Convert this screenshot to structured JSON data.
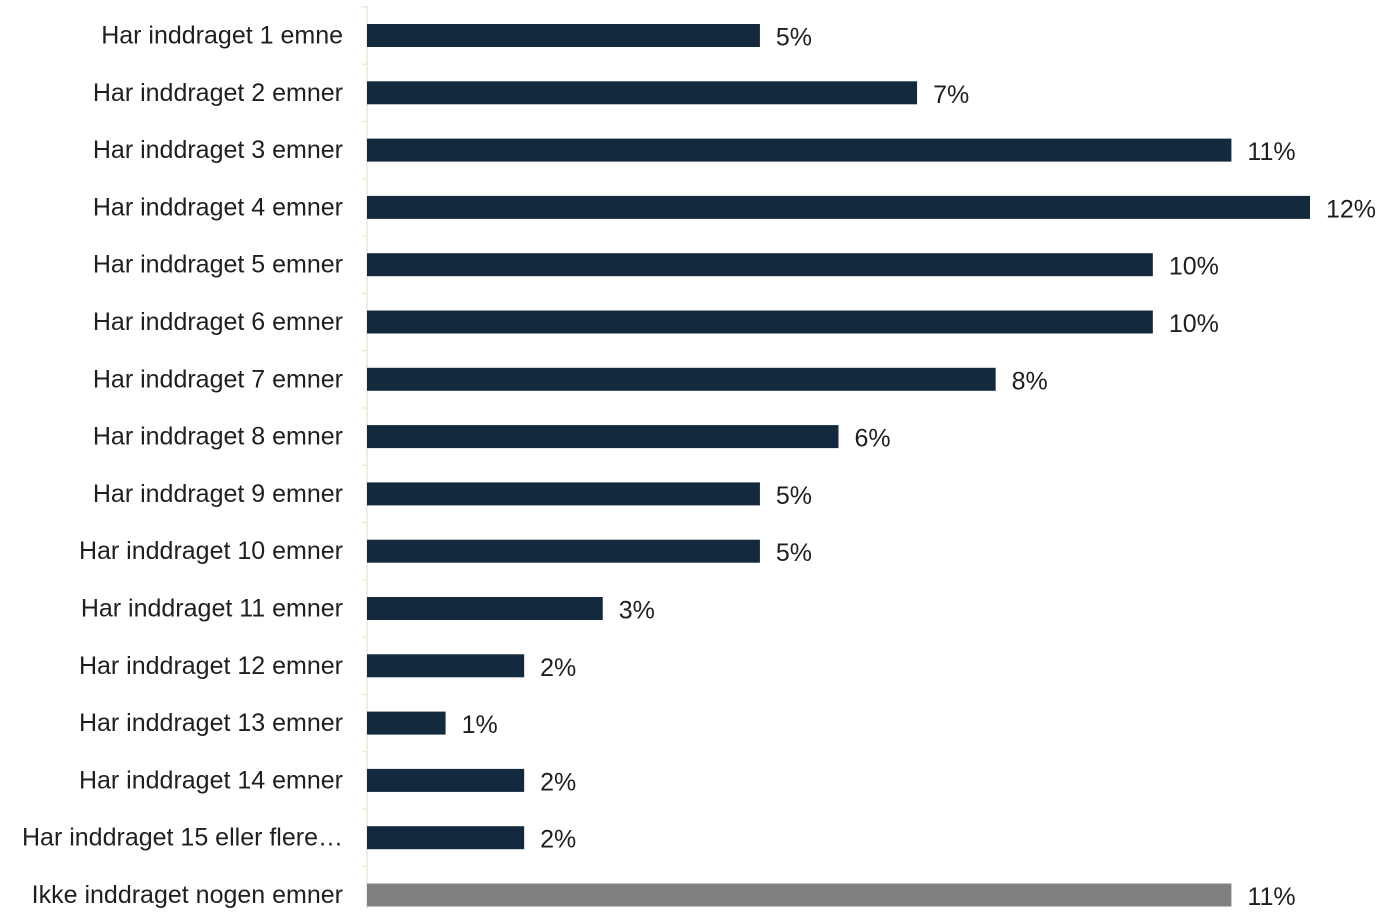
{
  "chart_data": {
    "type": "bar",
    "orientation": "horizontal",
    "categories": [
      "Har inddraget 1 emne",
      "Har inddraget 2 emner",
      "Har inddraget 3 emner",
      "Har inddraget 4 emner",
      "Har inddraget 5 emner",
      "Har inddraget 6 emner",
      "Har inddraget 7 emner",
      "Har inddraget 8 emner",
      "Har inddraget 9 emner",
      "Har inddraget 10 emner",
      "Har inddraget 11 emner",
      "Har inddraget 12 emner",
      "Har inddraget 13 emner",
      "Har inddraget 14 emner",
      "Har inddraget 15 eller flere…",
      "Ikke inddraget nogen emner"
    ],
    "values": [
      5,
      7,
      11,
      12,
      10,
      10,
      8,
      6,
      5,
      5,
      3,
      2,
      1,
      2,
      2,
      11
    ],
    "value_labels": [
      "5%",
      "7%",
      "11%",
      "12%",
      "10%",
      "10%",
      "8%",
      "6%",
      "5%",
      "5%",
      "3%",
      "2%",
      "1%",
      "2%",
      "2%",
      "11%"
    ],
    "bar_colors": [
      "#13293d",
      "#13293d",
      "#13293d",
      "#13293d",
      "#13293d",
      "#13293d",
      "#13293d",
      "#13293d",
      "#13293d",
      "#13293d",
      "#13293d",
      "#13293d",
      "#13293d",
      "#13293d",
      "#13293d",
      "#808080"
    ],
    "xlim": [
      0,
      12
    ],
    "grid": false,
    "legend": "none",
    "title": "",
    "xlabel": "",
    "ylabel": ""
  },
  "colors": {
    "primary_bar": "#13293d",
    "highlight_bar": "#808080",
    "axis_line": "#eadfc8",
    "text": "#1f1f1f"
  }
}
